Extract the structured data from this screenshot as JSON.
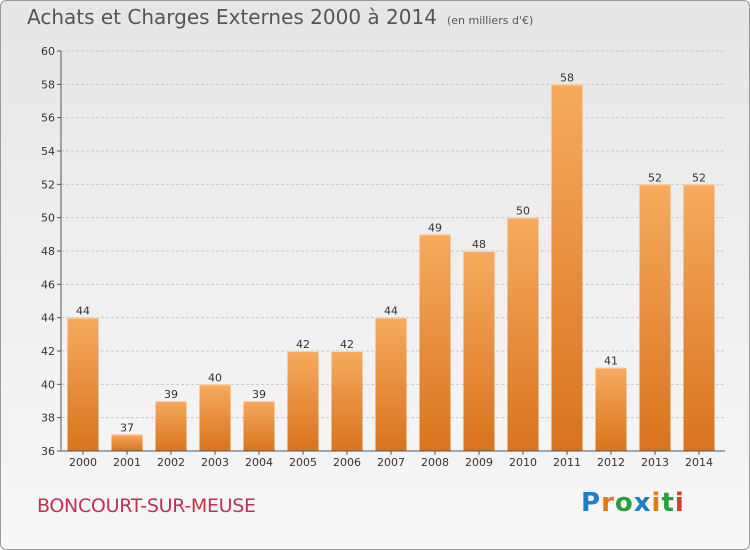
{
  "title": {
    "main": "Achats et Charges Externes 2000 à 2014",
    "unit": "(en milliers d'€)"
  },
  "place_name": "BONCOURT-SUR-MEUSE",
  "logo": {
    "text": "Proxiti",
    "letter_colors": [
      "#1e7fc4",
      "#e07b1a",
      "#2a9e3c",
      "#1e7fc4",
      "#e07b1a",
      "#2a9e3c",
      "#d93c2a"
    ]
  },
  "colors": {
    "bar_light": "#f6ab5e",
    "bar_dark": "#d9731e",
    "grid": "#c9c9c9",
    "axis": "#555555",
    "text": "#333333"
  },
  "chart_data": {
    "type": "bar",
    "categories": [
      "2000",
      "2001",
      "2002",
      "2003",
      "2004",
      "2005",
      "2006",
      "2007",
      "2008",
      "2009",
      "2010",
      "2011",
      "2012",
      "2013",
      "2014"
    ],
    "values": [
      44,
      37,
      39,
      40,
      39,
      42,
      42,
      44,
      49,
      48,
      50,
      58,
      41,
      52,
      52
    ],
    "ylim": [
      36,
      60
    ],
    "yticks": [
      36,
      38,
      40,
      42,
      44,
      46,
      48,
      50,
      52,
      54,
      56,
      58,
      60
    ],
    "grid": true
  }
}
